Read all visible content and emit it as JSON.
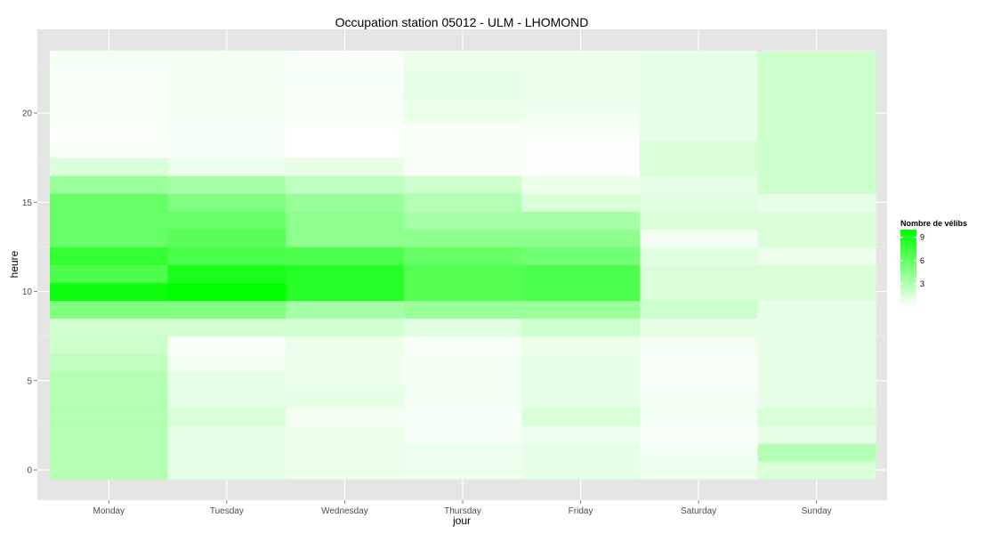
{
  "chart_data": {
    "type": "heatmap",
    "title": "Occupation station 05012 - ULM - LHOMOND",
    "xlabel": "jour",
    "ylabel": "heure",
    "x_categories": [
      "Monday",
      "Tuesday",
      "Wednesday",
      "Thursday",
      "Friday",
      "Saturday",
      "Sunday"
    ],
    "y_ticks": [
      0,
      5,
      10,
      15,
      20
    ],
    "ylim": [
      -0.5,
      23.5
    ],
    "grid": true,
    "color_low": "#ffffff",
    "color_high": "#00ff00",
    "legend": {
      "title": "Nombre de vélibs",
      "placement": "right",
      "ticks": [
        3,
        6,
        9
      ],
      "min": 0,
      "max": 10
    },
    "values": {
      "Monday": [
        3.0,
        3.0,
        3.0,
        3.0,
        3.0,
        3.0,
        2.5,
        2.0,
        1.8,
        5.0,
        9.5,
        7.0,
        8.0,
        6.0,
        6.0,
        6.0,
        4.0,
        1.5,
        0.3,
        0.2,
        0.3,
        0.3,
        0.3,
        0.5
      ],
      "Tuesday": [
        1.0,
        1.0,
        1.0,
        1.5,
        1.0,
        1.0,
        0.5,
        0.3,
        1.8,
        5.0,
        10.0,
        9.0,
        7.0,
        6.5,
        6.0,
        5.0,
        3.5,
        0.8,
        0.4,
        0.4,
        0.5,
        0.5,
        0.5,
        0.5
      ],
      "Wednesday": [
        0.8,
        0.8,
        0.8,
        0.5,
        1.0,
        0.8,
        0.8,
        0.8,
        1.8,
        3.5,
        8.5,
        8.5,
        7.0,
        4.5,
        4.5,
        4.0,
        2.5,
        1.0,
        0.0,
        0.0,
        0.3,
        0.3,
        0.4,
        0.3
      ],
      "Thursday": [
        0.7,
        0.7,
        0.4,
        0.4,
        0.5,
        0.5,
        0.5,
        0.3,
        1.2,
        4.0,
        6.8,
        6.8,
        6.0,
        4.5,
        3.5,
        3.0,
        2.0,
        0.3,
        0.3,
        0.3,
        0.8,
        1.0,
        1.0,
        0.8
      ],
      "Friday": [
        1.0,
        1.0,
        0.7,
        1.5,
        1.0,
        1.0,
        1.0,
        0.8,
        2.0,
        4.0,
        7.0,
        7.0,
        5.5,
        4.5,
        3.5,
        1.5,
        0.8,
        0.1,
        0.1,
        0.3,
        0.6,
        0.8,
        0.8,
        0.8
      ],
      "Saturday": [
        0.7,
        0.5,
        0.3,
        0.5,
        0.5,
        0.3,
        0.3,
        0.5,
        1.0,
        2.0,
        1.5,
        1.5,
        1.2,
        0.5,
        1.5,
        1.2,
        1.0,
        1.5,
        1.5,
        1.0,
        1.0,
        1.0,
        1.0,
        1.0
      ],
      "Sunday": [
        1.5,
        3.0,
        1.0,
        1.5,
        1.0,
        1.0,
        1.0,
        1.0,
        1.0,
        1.0,
        1.5,
        1.5,
        0.8,
        1.5,
        1.5,
        1.0,
        2.0,
        2.0,
        2.0,
        2.0,
        2.0,
        2.0,
        2.0,
        2.0
      ]
    }
  }
}
